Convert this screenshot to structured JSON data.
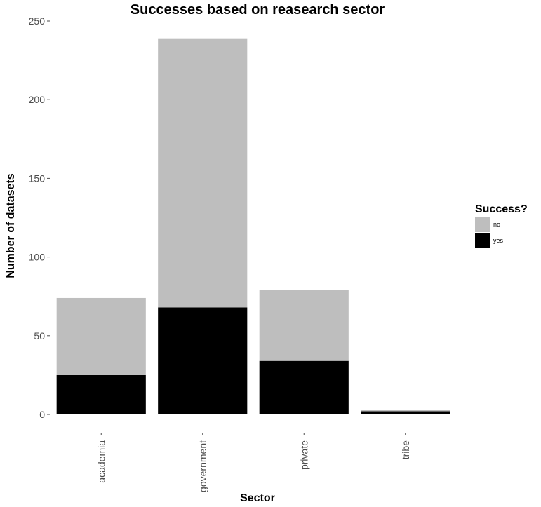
{
  "chart_data": {
    "type": "bar",
    "stacked": true,
    "title": "Successes based on reasearch sector",
    "xlabel": "Sector",
    "ylabel": "Number of datasets",
    "categories": [
      "academia",
      "government",
      "private",
      "tribe"
    ],
    "series": [
      {
        "name": "yes",
        "values": [
          25,
          68,
          34,
          2
        ],
        "color": "#000000"
      },
      {
        "name": "no",
        "values": [
          49,
          171,
          45,
          1
        ],
        "color": "#bebebe"
      }
    ],
    "ylim": [
      0,
      250
    ],
    "yticks": [
      "0",
      "50",
      "100",
      "150",
      "200",
      "250"
    ],
    "grid": false,
    "legend": {
      "title": "Success?",
      "placement": "right",
      "entries": [
        {
          "label": "no",
          "color": "#bebebe"
        },
        {
          "label": "yes",
          "color": "#000000"
        }
      ]
    }
  }
}
